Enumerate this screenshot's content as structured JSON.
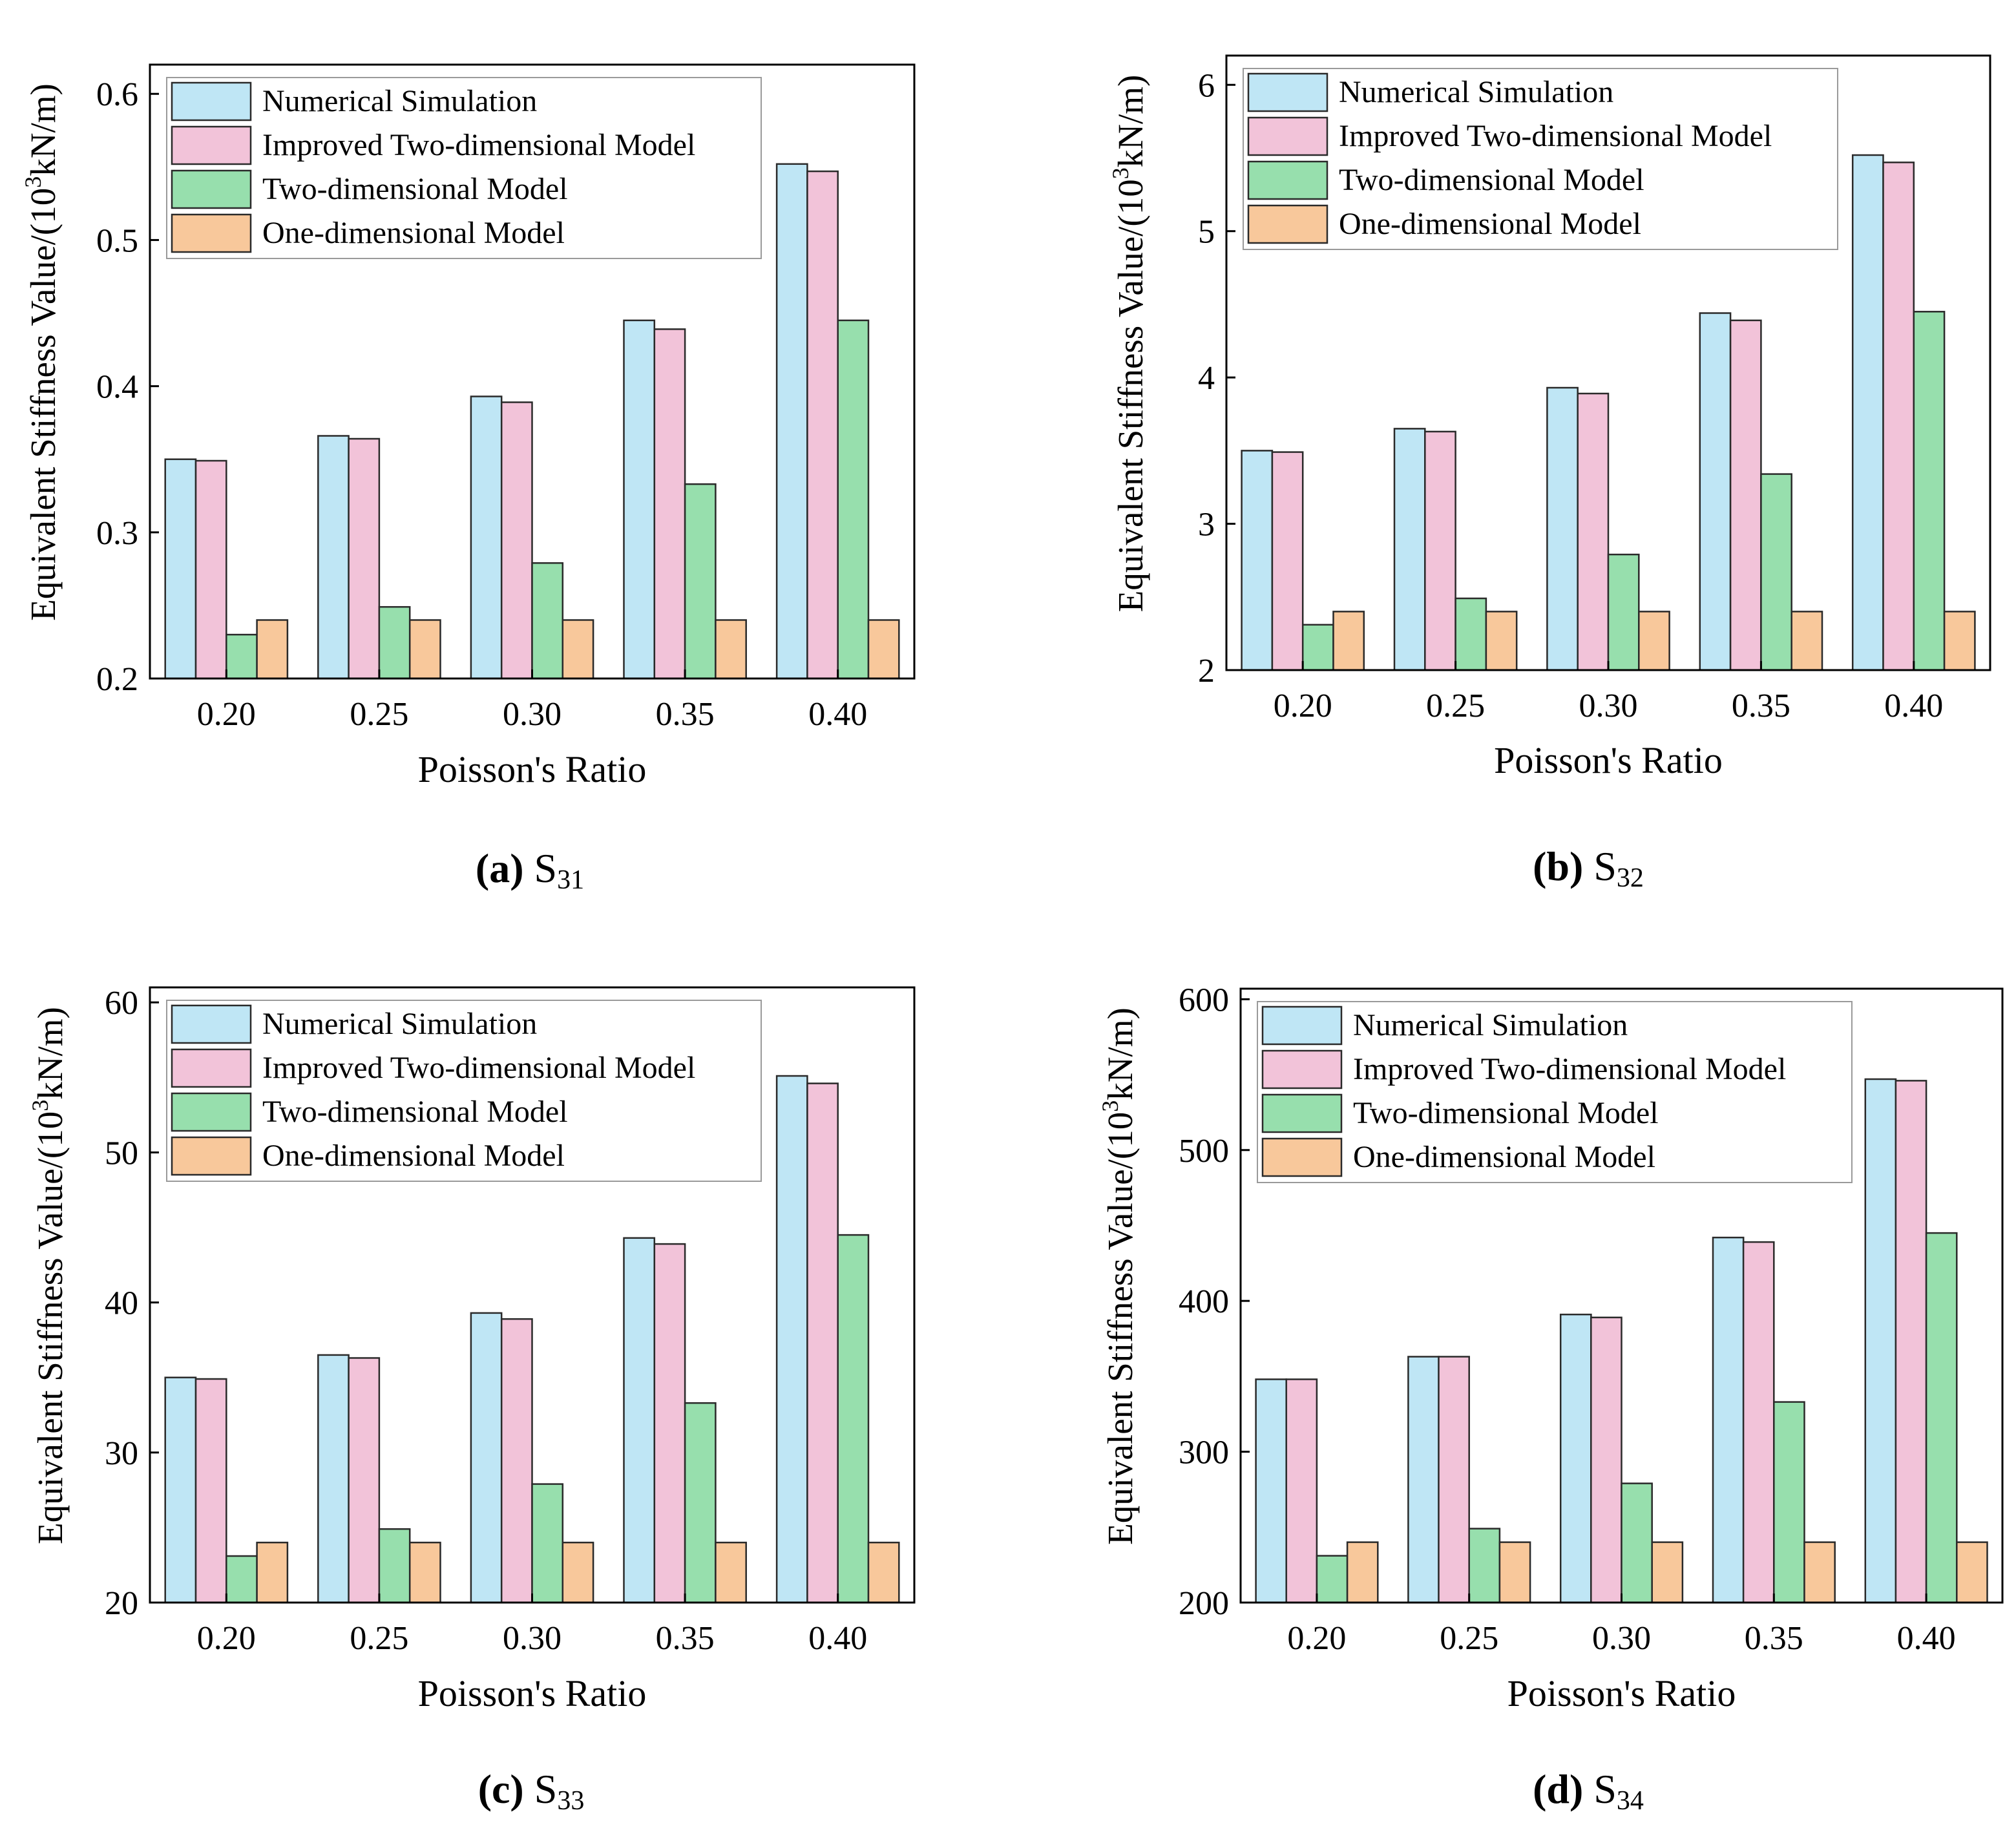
{
  "figure": {
    "colors": {
      "numerical": "#bfe6f5",
      "improved": "#f2c3d9",
      "two_dim": "#97dfad",
      "one_dim": "#f8c89b",
      "stroke": "#2a2a2a"
    }
  },
  "chart_data": [
    {
      "type": "bar",
      "caption_letter": "(a)",
      "caption_main": "S",
      "caption_sub": "31",
      "xlabel": "Poisson's Ratio",
      "ylabel_pre": "Equivalent Stiffness Value/(10",
      "ylabel_sup": "3",
      "ylabel_post": "kN/m)",
      "categories": [
        "0.20",
        "0.25",
        "0.30",
        "0.35",
        "0.40"
      ],
      "ylim": [
        0.2,
        0.62
      ],
      "yticks": [
        0.2,
        0.3,
        0.4,
        0.5,
        0.6
      ],
      "ytick_labels": [
        "0.2",
        "0.3",
        "0.4",
        "0.5",
        "0.6"
      ],
      "legend": "top-left",
      "series": [
        {
          "name": "Numerical Simulation",
          "values": [
            0.35,
            0.366,
            0.393,
            0.445,
            0.552
          ]
        },
        {
          "name": "Improved Two-dimensional Model",
          "values": [
            0.349,
            0.364,
            0.389,
            0.439,
            0.547
          ]
        },
        {
          "name": "Two-dimensional Model",
          "values": [
            0.23,
            0.249,
            0.279,
            0.333,
            0.445
          ]
        },
        {
          "name": "One-dimensional Model",
          "values": [
            0.24,
            0.24,
            0.24,
            0.24,
            0.24
          ]
        }
      ]
    },
    {
      "type": "bar",
      "caption_letter": "(b)",
      "caption_main": "S",
      "caption_sub": "32",
      "xlabel": "Poisson's Ratio",
      "ylabel_pre": "Equivalent Stiffness Value/(10",
      "ylabel_sup": "3",
      "ylabel_post": "kN/m)",
      "categories": [
        "0.20",
        "0.25",
        "0.30",
        "0.35",
        "0.40"
      ],
      "ylim": [
        2,
        6.2
      ],
      "yticks": [
        2,
        3,
        4,
        5,
        6
      ],
      "ytick_labels": [
        "2",
        "3",
        "4",
        "5",
        "6"
      ],
      "legend": "top-left",
      "series": [
        {
          "name": "Numerical Simulation",
          "values": [
            3.5,
            3.65,
            3.93,
            4.44,
            5.52
          ]
        },
        {
          "name": "Improved Two-dimensional Model",
          "values": [
            3.49,
            3.63,
            3.89,
            4.39,
            5.47
          ]
        },
        {
          "name": "Two-dimensional Model",
          "values": [
            2.31,
            2.49,
            2.79,
            3.34,
            4.45
          ]
        },
        {
          "name": "One-dimensional Model",
          "values": [
            2.4,
            2.4,
            2.4,
            2.4,
            2.4
          ]
        }
      ]
    },
    {
      "type": "bar",
      "caption_letter": "(c)",
      "caption_main": "S",
      "caption_sub": "33",
      "xlabel": "Poisson's Ratio",
      "ylabel_pre": "Equivalent Stiffness Value/(10",
      "ylabel_sup": "3",
      "ylabel_post": "kN/m)",
      "categories": [
        "0.20",
        "0.25",
        "0.30",
        "0.35",
        "0.40"
      ],
      "ylim": [
        20,
        61
      ],
      "yticks": [
        20,
        30,
        40,
        50,
        60
      ],
      "ytick_labels": [
        "20",
        "30",
        "40",
        "50",
        "60"
      ],
      "legend": "top-left",
      "series": [
        {
          "name": "Numerical Simulation",
          "values": [
            35.0,
            36.5,
            39.3,
            44.3,
            55.1
          ]
        },
        {
          "name": "Improved Two-dimensional Model",
          "values": [
            34.9,
            36.3,
            38.9,
            43.9,
            54.6
          ]
        },
        {
          "name": "Two-dimensional Model",
          "values": [
            23.1,
            24.9,
            27.9,
            33.3,
            44.5
          ]
        },
        {
          "name": "One-dimensional Model",
          "values": [
            24.0,
            24.0,
            24.0,
            24.0,
            24.0
          ]
        }
      ]
    },
    {
      "type": "bar",
      "caption_letter": "(d)",
      "caption_main": "S",
      "caption_sub": "34",
      "xlabel": "Poisson's Ratio",
      "ylabel_pre": "Equivalent Stiffness Value/(10",
      "ylabel_sup": "3",
      "ylabel_post": "kN/m)",
      "categories": [
        "0.20",
        "0.25",
        "0.30",
        "0.35",
        "0.40"
      ],
      "ylim": [
        200,
        607
      ],
      "yticks": [
        200,
        300,
        400,
        500,
        600
      ],
      "ytick_labels": [
        "200",
        "300",
        "400",
        "500",
        "600"
      ],
      "legend": "top-left",
      "series": [
        {
          "name": "Numerical Simulation",
          "values": [
            348,
            363,
            391,
            442,
            547
          ]
        },
        {
          "name": "Improved Two-dimensional Model",
          "values": [
            348,
            363,
            389,
            439,
            546
          ]
        },
        {
          "name": "Two-dimensional Model",
          "values": [
            231,
            249,
            279,
            333,
            445
          ]
        },
        {
          "name": "One-dimensional Model",
          "values": [
            240,
            240,
            240,
            240,
            240
          ]
        }
      ]
    }
  ]
}
